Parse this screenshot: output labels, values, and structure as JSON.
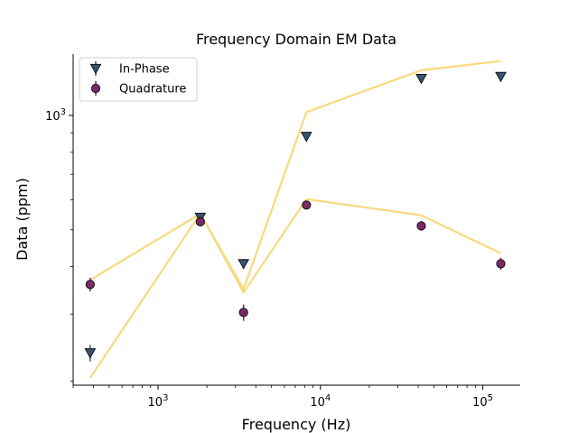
{
  "chart_data": {
    "type": "scatter",
    "title": "Frequency Domain EM Data",
    "xlabel": "Frequency (Hz)",
    "ylabel": "Data (ppm)",
    "xscale": "log",
    "yscale": "log",
    "xlim": [
      300,
      170000
    ],
    "ylim": [
      195,
      1450
    ],
    "legend_position": "top-left",
    "grid": false,
    "x_ticks": [
      {
        "base": "10",
        "exp": "3",
        "value": 1000
      },
      {
        "base": "10",
        "exp": "4",
        "value": 10000
      },
      {
        "base": "10",
        "exp": "5",
        "value": 100000
      }
    ],
    "y_ticks": [
      {
        "base": "10",
        "exp": "3",
        "value": 1000
      }
    ],
    "series": [
      {
        "name": "In-Phase",
        "kind": "points",
        "marker": "triangle-down",
        "color": "#3a5572",
        "x": [
          382,
          1822,
          3362,
          8200,
          41820,
          129100
        ],
        "y": [
          237,
          539,
          407,
          880,
          1250,
          1265
        ],
        "err": [
          12,
          15,
          12,
          20,
          25,
          25
        ]
      },
      {
        "name": "Quadrature",
        "kind": "points",
        "marker": "circle",
        "color": "#7b2a67",
        "x": [
          382,
          1822,
          3362,
          8200,
          41820,
          129100
        ],
        "y": [
          359,
          525,
          303,
          581,
          512,
          407
        ],
        "err": [
          15,
          15,
          15,
          15,
          15,
          15
        ]
      },
      {
        "kind": "line",
        "color": "#f7da7e",
        "x": [
          382,
          1822,
          3362,
          8200,
          41820,
          129100
        ],
        "y": [
          369,
          551,
          349,
          1020,
          1315,
          1390
        ]
      },
      {
        "kind": "line",
        "color": "#f7da7e",
        "x": [
          382,
          1822,
          3362,
          8200,
          41820,
          129100
        ],
        "y": [
          204,
          552,
          342,
          602,
          546,
          434
        ]
      }
    ]
  }
}
